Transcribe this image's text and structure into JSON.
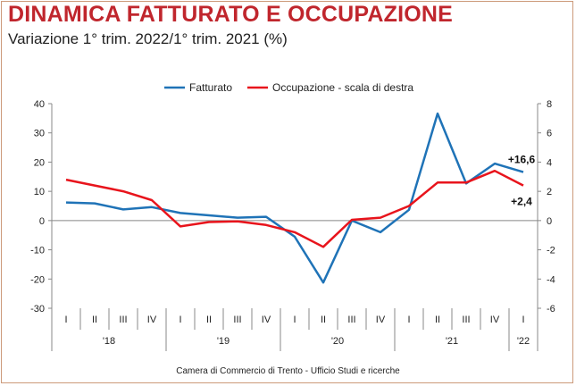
{
  "header": {
    "title": "DINAMICA FATTURATO E OCCUPAZIONE",
    "subtitle": "Variazione 1° trim. 2022/1° trim. 2021 (%)"
  },
  "source": "Camera di Commercio di Trento - Ufficio Studi e ricerche",
  "chart_data": {
    "type": "line",
    "title": "",
    "categories": [
      "I",
      "II",
      "III",
      "IV",
      "I",
      "II",
      "III",
      "IV",
      "I",
      "II",
      "III",
      "IV",
      "I",
      "II",
      "III",
      "IV",
      "I"
    ],
    "year_labels": [
      {
        "label": "'18",
        "from": 0,
        "to": 3
      },
      {
        "label": "'19",
        "from": 4,
        "to": 7
      },
      {
        "label": "'20",
        "from": 8,
        "to": 11
      },
      {
        "label": "'21",
        "from": 12,
        "to": 15
      },
      {
        "label": "'22",
        "from": 16,
        "to": 16
      }
    ],
    "ylim_left": [
      -30,
      40
    ],
    "yticks_left": [
      "40",
      "30",
      "20",
      "10",
      "0",
      "-10",
      "-20",
      "-30"
    ],
    "ylim_right": [
      -6,
      8
    ],
    "yticks_right": [
      "8",
      "6",
      "4",
      "2",
      "0",
      "-2",
      "-4",
      "-6"
    ],
    "series": [
      {
        "name": "Fatturato",
        "axis": "left",
        "color": "#1f73b7",
        "values": [
          6.2,
          5.9,
          3.8,
          4.6,
          2.6,
          1.8,
          1.0,
          1.3,
          -5.5,
          -21.2,
          0.0,
          -4.0,
          3.7,
          36.6,
          12.7,
          19.5,
          16.6
        ]
      },
      {
        "name": "Occupazione - scala di destra",
        "axis": "right",
        "color": "#e8141c",
        "values": [
          2.8,
          2.4,
          2.0,
          1.4,
          -0.4,
          -0.1,
          -0.05,
          -0.3,
          -0.8,
          -1.8,
          0.05,
          0.2,
          1.0,
          2.6,
          2.6,
          3.4,
          2.4
        ]
      }
    ],
    "annotations": [
      {
        "series": 0,
        "index": 16,
        "text": "+16,6"
      },
      {
        "series": 1,
        "index": 16,
        "text": "+2,4"
      }
    ],
    "legend_position": "top-center",
    "grid": false
  }
}
